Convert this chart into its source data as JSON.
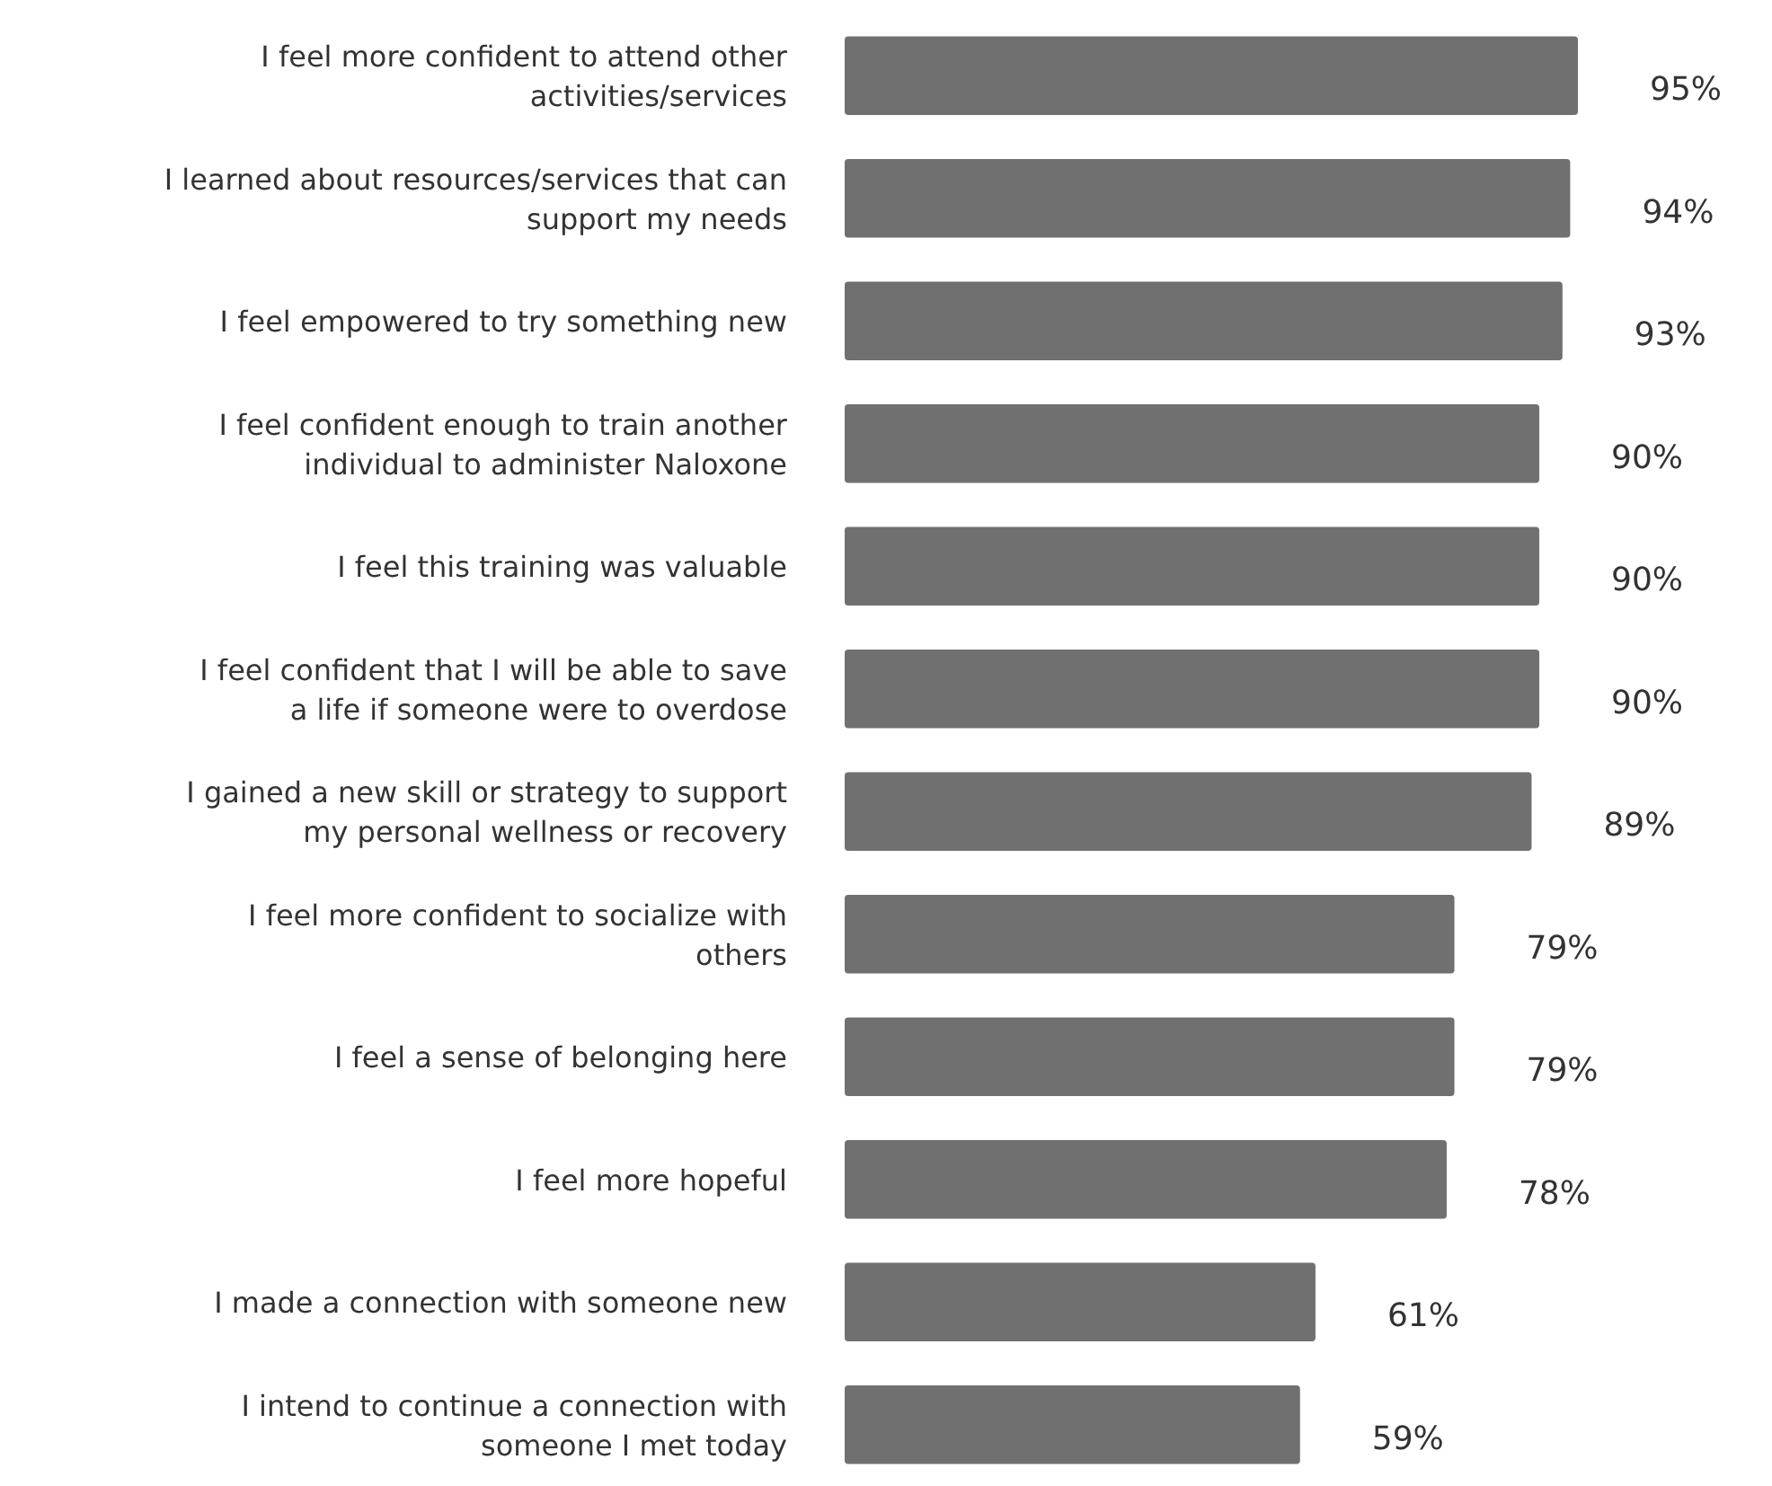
{
  "chart_data": {
    "type": "bar",
    "orientation": "horizontal",
    "categories": [
      "I feel more confident to attend other activities/services",
      "I learned about resources/services that can support my needs",
      "I feel empowered to try something new",
      "I feel confident enough to train another individual to administer Naloxone",
      "I feel this training was valuable",
      "I feel confident that I will be able to save a life if someone were to overdose",
      "I gained a new skill or strategy to support my personal wellness or recovery",
      "I feel more confident to socialize with others",
      "I feel a sense of belonging here",
      "I feel more hopeful",
      "I made a connection with someone new",
      "I intend to continue a connection with someone I met today"
    ],
    "values": [
      95,
      94,
      93,
      90,
      90,
      90,
      89,
      79,
      79,
      78,
      61,
      59
    ],
    "value_labels": [
      "95%",
      "94%",
      "93%",
      "90%",
      "90%",
      "90%",
      "89%",
      "79%",
      "79%",
      "78%",
      "61%",
      "59%"
    ],
    "color": "#707070"
  }
}
